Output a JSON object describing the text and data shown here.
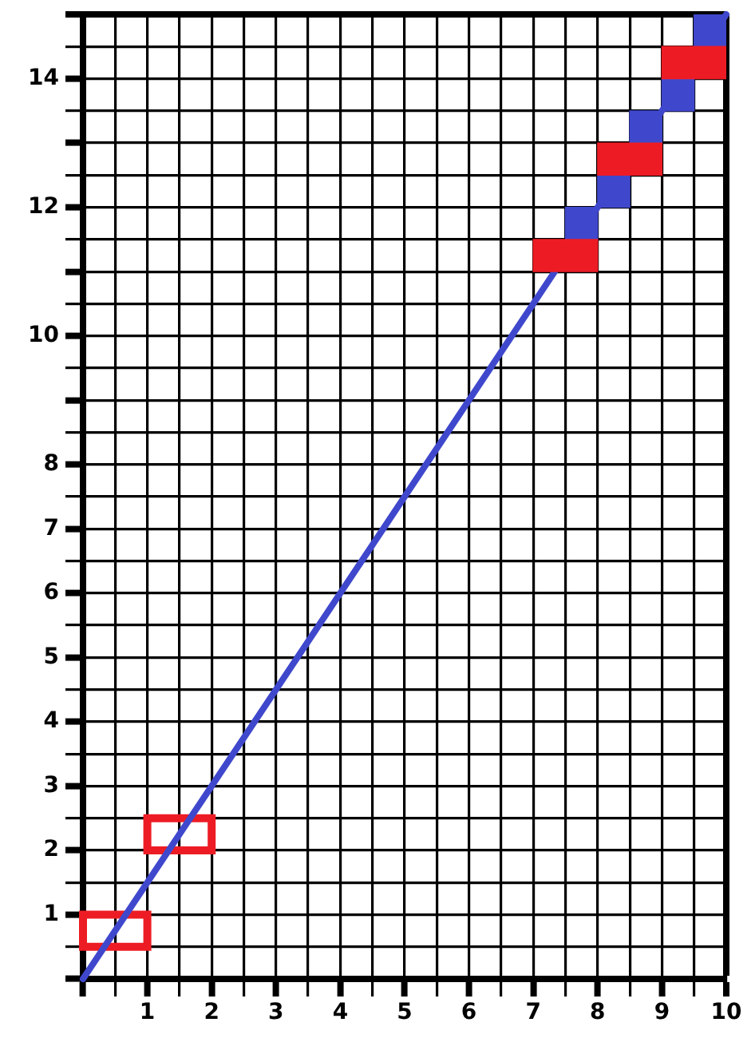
{
  "chart_data": {
    "type": "line",
    "xlim": [
      0,
      10
    ],
    "ylim": [
      0,
      15
    ],
    "xticks": [
      {
        "value": 0,
        "label": null
      },
      {
        "value": 0.5,
        "label": null
      },
      1,
      {
        "value": 1.5,
        "label": null
      },
      2,
      {
        "value": 2.5,
        "label": null
      },
      3,
      {
        "value": 3.5,
        "label": null
      },
      4,
      {
        "value": 4.5,
        "label": null
      },
      5,
      {
        "value": 5.5,
        "label": null
      },
      6,
      {
        "value": 6.5,
        "label": null
      },
      7,
      {
        "value": 7.5,
        "label": null
      },
      8,
      {
        "value": 8.5,
        "label": null
      },
      9,
      {
        "value": 9.5,
        "label": null
      },
      10
    ],
    "yticks": [
      {
        "value": 0,
        "label": null
      },
      {
        "value": 0.5,
        "label": null
      },
      1,
      {
        "value": 1.5,
        "label": null
      },
      2,
      {
        "value": 2.5,
        "label": null
      },
      3,
      {
        "value": 3.5,
        "label": null
      },
      4,
      {
        "value": 4.5,
        "label": null
      },
      5,
      {
        "value": 5.5,
        "label": null
      },
      6,
      {
        "value": 6.5,
        "label": null
      },
      7,
      {
        "value": 7.5,
        "label": null
      },
      8,
      {
        "value": 8.5,
        "label": null
      },
      {
        "value": 9,
        "label": null
      },
      {
        "value": 9.5,
        "label": null
      },
      10,
      {
        "value": 10.5,
        "label": null
      },
      {
        "value": 11,
        "label": null
      },
      {
        "value": 11.5,
        "label": null
      },
      12,
      {
        "value": 12.5,
        "label": null
      },
      {
        "value": 13,
        "label": null
      },
      {
        "value": 13.5,
        "label": null
      },
      14,
      {
        "value": 14.5,
        "label": null
      },
      {
        "value": 15,
        "label": null
      }
    ],
    "grid": true,
    "series": [
      {
        "type": "bar",
        "color": "#ed1c24",
        "x": [
          0.5,
          1.5
        ],
        "base": [
          0.5,
          2
        ],
        "values": [
          0.5,
          0.5
        ],
        "line_style": "solid"
      },
      {
        "color": "#3f48cc",
        "x": [
          0,
          10
        ],
        "values": [
          0,
          15
        ]
      },
      {
        "type": "bar",
        "color": "#3f48cc",
        "x": [
          7.75,
          8.25,
          8.75,
          9.25,
          9.75
        ],
        "base": [
          11.5,
          12,
          13,
          13.5,
          14.5
        ],
        "values": [
          0.5,
          0.5,
          0.5,
          0.5,
          0.5
        ]
      },
      {
        "type": "bar",
        "color": "#ed1c24",
        "x": [
          7.5,
          8.5,
          9.5
        ],
        "base": [
          11,
          12.5,
          14
        ],
        "values": [
          0.5,
          0.5,
          0.5
        ]
      }
    ]
  }
}
